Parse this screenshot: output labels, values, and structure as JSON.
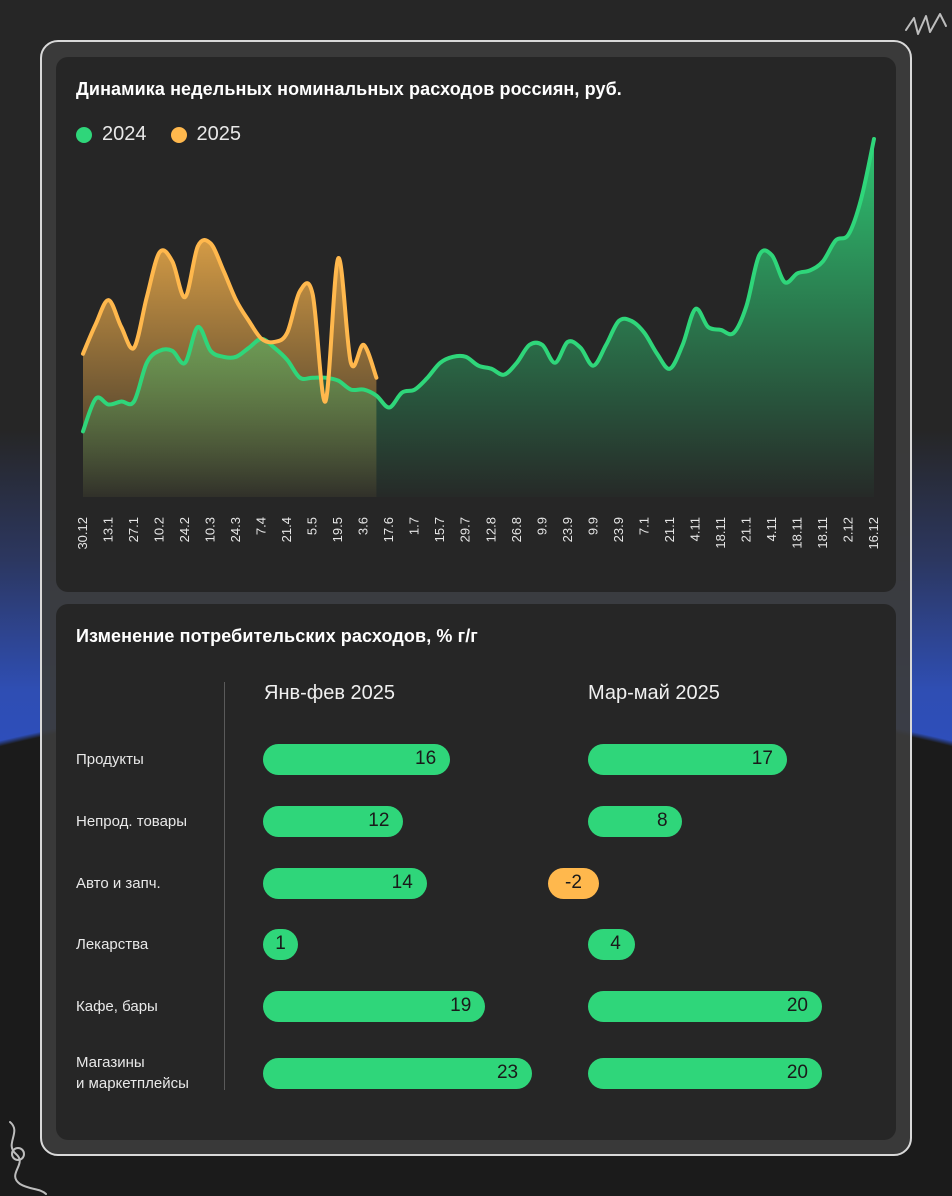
{
  "colors": {
    "y2024": "#2fd67a",
    "y2025": "#ffb84d",
    "bar_positive": "#2fd67a",
    "bar_negative": "#ffb84d"
  },
  "chart_data": [
    {
      "type": "area",
      "title": "Динамика недельных номинальных расходов россиян, руб.",
      "legend_placement": "top-left",
      "grid": false,
      "x_tick_labels": [
        "30.12",
        "13.1",
        "27.1",
        "10.2",
        "24.2",
        "10.3",
        "24.3",
        "7.4",
        "21.4",
        "5.5",
        "19.5",
        "3.6",
        "17.6",
        "1.7",
        "15.7",
        "29.7",
        "12.8",
        "26.8",
        "9.9",
        "23.9",
        "9.9",
        "23.9",
        "7.1",
        "21.1",
        "4.11",
        "18.11",
        "21.1",
        "4.11",
        "18.11",
        "18.11",
        "2.12",
        "16.12"
      ],
      "ylim": [
        0,
        100
      ],
      "series": [
        {
          "name": "2024",
          "values": [
            22,
            33,
            31,
            32,
            32,
            45,
            49,
            49,
            45,
            57,
            49,
            47,
            47,
            50,
            53,
            50,
            46,
            40,
            40,
            40,
            39,
            36,
            36,
            34,
            30,
            35,
            36,
            40,
            45,
            47,
            47,
            44,
            43,
            41,
            45,
            51,
            51,
            45,
            52,
            50,
            44,
            51,
            59,
            59,
            55,
            48,
            43,
            51,
            63,
            57,
            56,
            55,
            64,
            81,
            81,
            72,
            75,
            76,
            79,
            86,
            88,
            100,
            120
          ]
        },
        {
          "name": "2025",
          "values": [
            48,
            58,
            66,
            57,
            50,
            67,
            82,
            79,
            67,
            84,
            85,
            76,
            66,
            59,
            53,
            52,
            55,
            69,
            68,
            32,
            80,
            45,
            51,
            40
          ]
        }
      ]
    },
    {
      "type": "bar",
      "orientation": "horizontal",
      "title": "Изменение потребительских расходов, % г/г",
      "categories": [
        "Продукты",
        "Непрод. товары",
        "Авто и запч.",
        "Лекарства",
        "Кафе, бары",
        "Магазины\nи маркетплейсы"
      ],
      "series": [
        {
          "name": "Янв-фев 2025",
          "values": [
            16,
            12,
            14,
            1,
            19,
            23
          ]
        },
        {
          "name": "Мар-май 2025",
          "values": [
            17,
            8,
            -2,
            4,
            20,
            20
          ]
        }
      ]
    }
  ]
}
